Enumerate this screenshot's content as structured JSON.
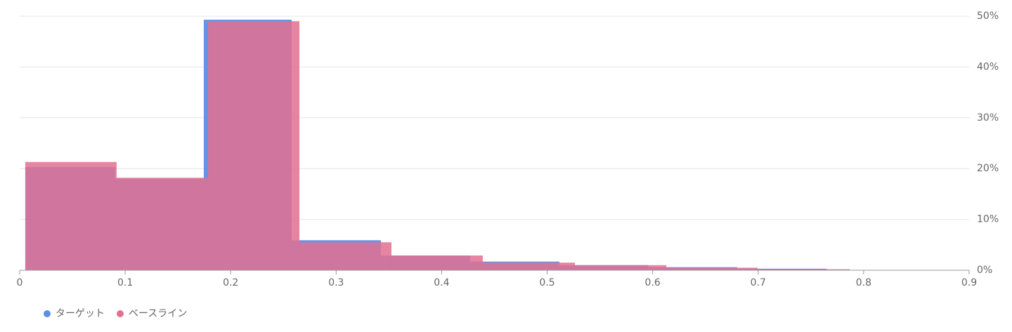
{
  "chart_data": {
    "type": "histogram",
    "xlim": [
      0,
      0.9
    ],
    "xticks": [
      0,
      0.1,
      0.2,
      0.3,
      0.4,
      0.5,
      0.6,
      0.7,
      0.8,
      0.9
    ],
    "ylim": [
      0,
      50
    ],
    "yticks": [
      {
        "value": 0,
        "label": "0%"
      },
      {
        "value": 10,
        "label": "10%"
      },
      {
        "value": 20,
        "label": "20%"
      },
      {
        "value": 30,
        "label": "30%"
      },
      {
        "value": 40,
        "label": "40%"
      },
      {
        "value": 50,
        "label": "50%"
      }
    ],
    "grid": true,
    "legend": "bottom-left",
    "series": [
      {
        "name": "ターゲット",
        "color": "#5b8ee6",
        "bins": [
          0.0053,
          0.0906,
          0.1745,
          0.2578,
          0.3424,
          0.427,
          0.5116,
          0.5956,
          0.68,
          0.765
        ],
        "values": [
          20.3,
          18.0,
          49.3,
          5.9,
          2.9,
          1.7,
          1.0,
          0.6,
          0.3
        ]
      },
      {
        "name": "ベースライン",
        "color": "#e3708f",
        "bins": [
          0.0053,
          0.0919,
          0.1785,
          0.2652,
          0.3524,
          0.439,
          0.5263,
          0.613,
          0.6995,
          0.7868
        ],
        "values": [
          21.3,
          18.2,
          49.0,
          5.5,
          2.9,
          1.5,
          1.0,
          0.5,
          0.2
        ]
      }
    ]
  }
}
